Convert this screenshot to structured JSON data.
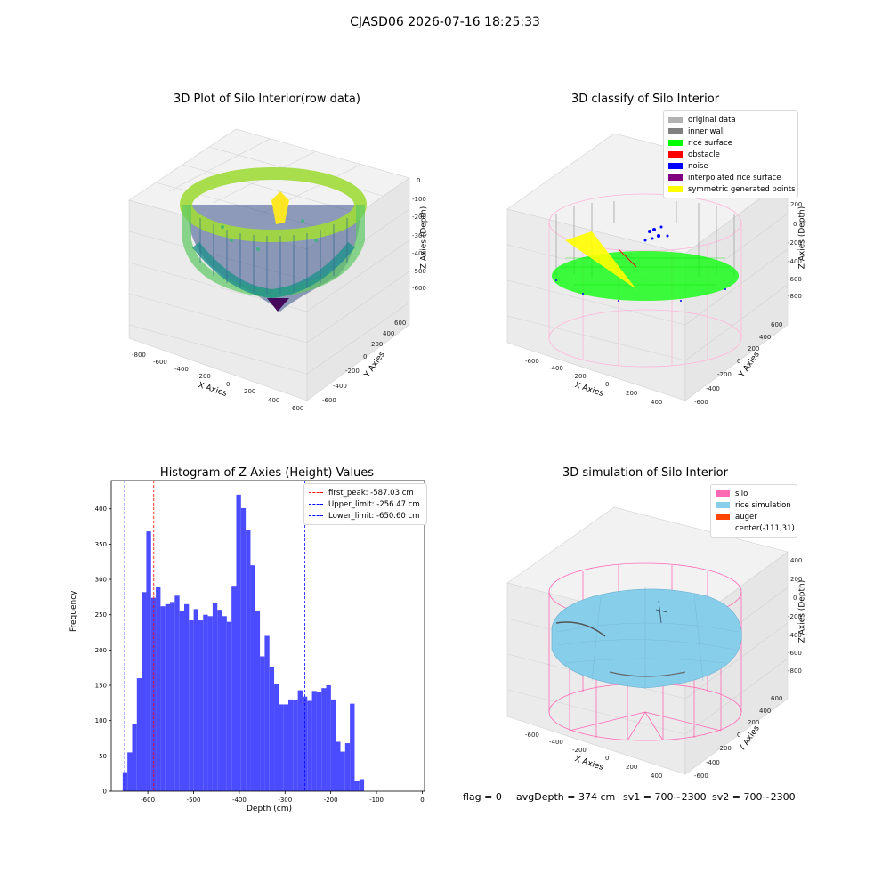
{
  "figure_title": "CJASD06 2026-07-16 18:25:33",
  "panels": {
    "raw": {
      "title": "3D Plot of Silo Interior(row data)",
      "x_label": "X Axies",
      "y_label": "Y Axies",
      "z_label": "Z Axies (Depth)",
      "x_ticks": [
        "-800",
        "-600",
        "-400",
        "-200",
        "0",
        "200",
        "400",
        "600"
      ],
      "y_ticks": [
        "-600",
        "-400",
        "-200",
        "0",
        "200",
        "400",
        "600"
      ],
      "z_ticks": [
        "0",
        "-100",
        "-200",
        "-300",
        "-400",
        "-500",
        "-600"
      ],
      "colormap": "viridis"
    },
    "classify": {
      "title": "3D classify of Silo Interior",
      "x_label": "X Axies",
      "y_label": "Y Axies",
      "z_label": "Z Axies (Depth)",
      "x_ticks": [
        "-600",
        "-400",
        "-200",
        "0",
        "200",
        "400"
      ],
      "y_ticks": [
        "-600",
        "-400",
        "-200",
        "0",
        "200",
        "400",
        "600"
      ],
      "z_ticks": [
        "200",
        "0",
        "-200",
        "-400",
        "-600",
        "-800"
      ],
      "legend": [
        {
          "label": "original data",
          "color": "#b3b3b3"
        },
        {
          "label": "inner wall",
          "color": "#808080"
        },
        {
          "label": "rice surface",
          "color": "#00ff00"
        },
        {
          "label": "obstacle",
          "color": "#ff0000"
        },
        {
          "label": "noise",
          "color": "#0000ff"
        },
        {
          "label": "interpolated rice surface",
          "color": "#800080"
        },
        {
          "label": "symmetric generated points",
          "color": "#ffff00"
        }
      ]
    },
    "simulation": {
      "title": "3D simulation of Silo Interior",
      "x_label": "X Axies",
      "y_label": "Y Axies",
      "z_label": "Z Axies (Depth)",
      "x_ticks": [
        "-600",
        "-400",
        "-200",
        "0",
        "200",
        "400"
      ],
      "y_ticks": [
        "-600",
        "-400",
        "-200",
        "0",
        "200",
        "400",
        "600"
      ],
      "z_ticks": [
        "400",
        "200",
        "0",
        "-200",
        "-400",
        "-600",
        "-800"
      ],
      "legend": [
        {
          "label": "silo",
          "color": "#ff69b4"
        },
        {
          "label": "rice simulation",
          "color": "#87ceeb"
        },
        {
          "label": "auger",
          "color": "#ff4500"
        },
        {
          "label": "center(-111,31)",
          "color": ""
        }
      ]
    }
  },
  "status": {
    "flag": "flag = 0",
    "avg_depth": "avgDepth = 374 cm",
    "sv1": "sv1 = 700~2300",
    "sv2": "sv2 = 700~2300"
  },
  "chart_data": {
    "type": "bar",
    "title": "Histogram of Z-Axies (Height) Values",
    "xlabel": "Depth (cm)",
    "ylabel": "Frequency",
    "xlim": [
      -680,
      5
    ],
    "ylim": [
      0,
      440
    ],
    "x_ticks": [
      -600,
      -500,
      -400,
      -300,
      -200,
      -100,
      0
    ],
    "y_ticks": [
      0,
      50,
      100,
      150,
      200,
      250,
      300,
      350,
      400
    ],
    "bin_start": -655,
    "bin_width": 10.35,
    "color": "#4b4bff",
    "values": [
      27,
      55,
      95,
      160,
      282,
      368,
      274,
      290,
      262,
      265,
      268,
      277,
      255,
      265,
      242,
      258,
      242,
      250,
      248,
      267,
      257,
      248,
      240,
      291,
      420,
      401,
      370,
      320,
      256,
      191,
      220,
      176,
      152,
      123,
      123,
      130,
      129,
      143,
      134,
      128,
      142,
      141,
      146,
      150,
      130,
      70,
      56,
      68,
      124,
      14,
      17
    ],
    "lines": [
      {
        "label": "first_peak: -587.03 cm",
        "x": -587.03,
        "color": "#ff0000"
      },
      {
        "label": "Upper_limit: -256.47 cm",
        "x": -256.47,
        "color": "#0000ff"
      },
      {
        "label": "Lower_limit: -650.60 cm",
        "x": -650.6,
        "color": "#0000ff"
      }
    ],
    "legend_position": "top-right",
    "grid": false
  }
}
